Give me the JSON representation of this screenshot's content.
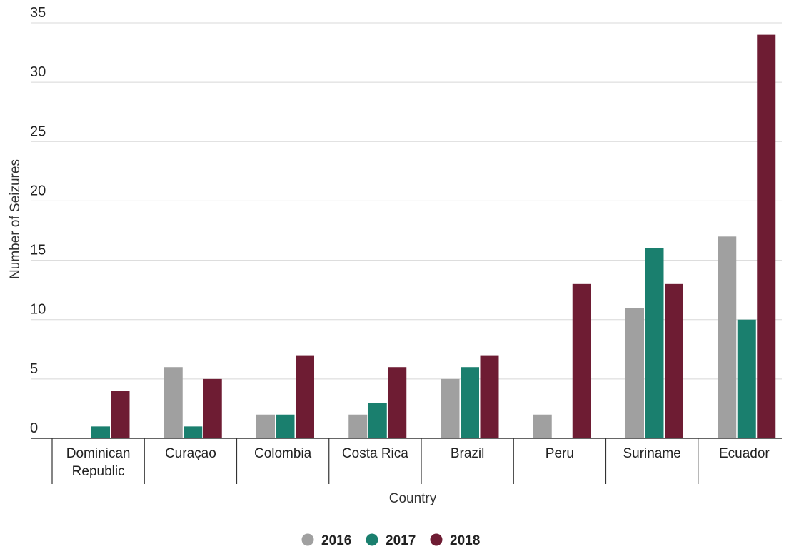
{
  "chart_data": {
    "type": "bar",
    "xlabel": "Country",
    "ylabel": "Number of Seizures",
    "ylim": [
      0,
      35
    ],
    "yticks": [
      0,
      5,
      10,
      15,
      20,
      25,
      30,
      35
    ],
    "grid": true,
    "legend_position": "bottom-center",
    "categories": [
      [
        "Dominican",
        "Republic"
      ],
      [
        "Curaçao"
      ],
      [
        "Colombia"
      ],
      [
        "Costa Rica"
      ],
      [
        "Brazil"
      ],
      [
        "Peru"
      ],
      [
        "Suriname"
      ],
      [
        "Ecuador"
      ]
    ],
    "series": [
      {
        "name": "2016",
        "color": "#a0a0a0",
        "values": [
          0,
          6,
          2,
          2,
          5,
          2,
          11,
          17
        ]
      },
      {
        "name": "2017",
        "color": "#1a7f6e",
        "values": [
          1,
          1,
          2,
          3,
          6,
          0,
          16,
          10
        ]
      },
      {
        "name": "2018",
        "color": "#6e1c33",
        "values": [
          4,
          5,
          7,
          6,
          7,
          13,
          13,
          34
        ]
      }
    ]
  }
}
